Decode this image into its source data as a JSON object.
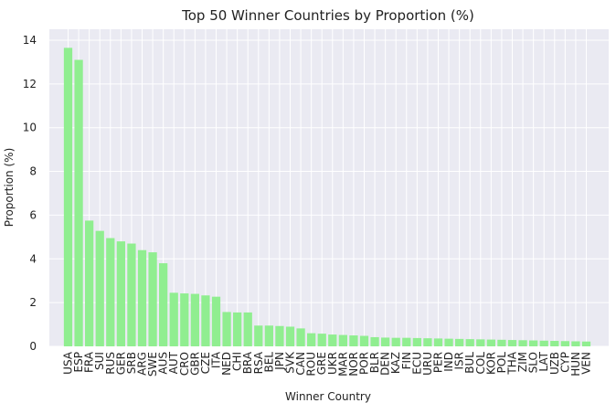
{
  "chart_data": {
    "type": "bar",
    "title": "Top 50 Winner Countries by Proportion (%)",
    "xlabel": "Winner Country",
    "ylabel": "Proportion (%)",
    "ylim": [
      0,
      14.5
    ],
    "yticks": [
      0,
      2,
      4,
      6,
      8,
      10,
      12,
      14
    ],
    "grid": true,
    "bar_color": "#90ee90",
    "background_color": "#eaeaf2",
    "grid_color": "#ffffff",
    "categories": [
      "USA",
      "ESP",
      "FRA",
      "SUI",
      "RUS",
      "GER",
      "SRB",
      "ARG",
      "SWE",
      "AUS",
      "AUT",
      "CRO",
      "GBR",
      "CZE",
      "ITA",
      "NED",
      "CHI",
      "BRA",
      "RSA",
      "BEL",
      "JPN",
      "SVK",
      "CAN",
      "ROU",
      "GRE",
      "UKR",
      "MAR",
      "NOR",
      "POR",
      "BLR",
      "DEN",
      "KAZ",
      "FIN",
      "ECU",
      "URU",
      "PER",
      "IND",
      "ISR",
      "BUL",
      "COL",
      "KOR",
      "POL",
      "THA",
      "ZIM",
      "SLO",
      "LAT",
      "UZB",
      "CYP",
      "HUN",
      "VEN"
    ],
    "values": [
      13.65,
      13.1,
      5.75,
      5.28,
      4.95,
      4.8,
      4.7,
      4.4,
      4.3,
      3.8,
      2.45,
      2.42,
      2.4,
      2.33,
      2.27,
      1.57,
      1.55,
      1.55,
      0.95,
      0.95,
      0.93,
      0.9,
      0.82,
      0.6,
      0.58,
      0.54,
      0.52,
      0.5,
      0.48,
      0.42,
      0.4,
      0.39,
      0.39,
      0.38,
      0.37,
      0.36,
      0.35,
      0.34,
      0.33,
      0.32,
      0.31,
      0.3,
      0.29,
      0.28,
      0.27,
      0.26,
      0.25,
      0.24,
      0.23,
      0.22
    ]
  }
}
